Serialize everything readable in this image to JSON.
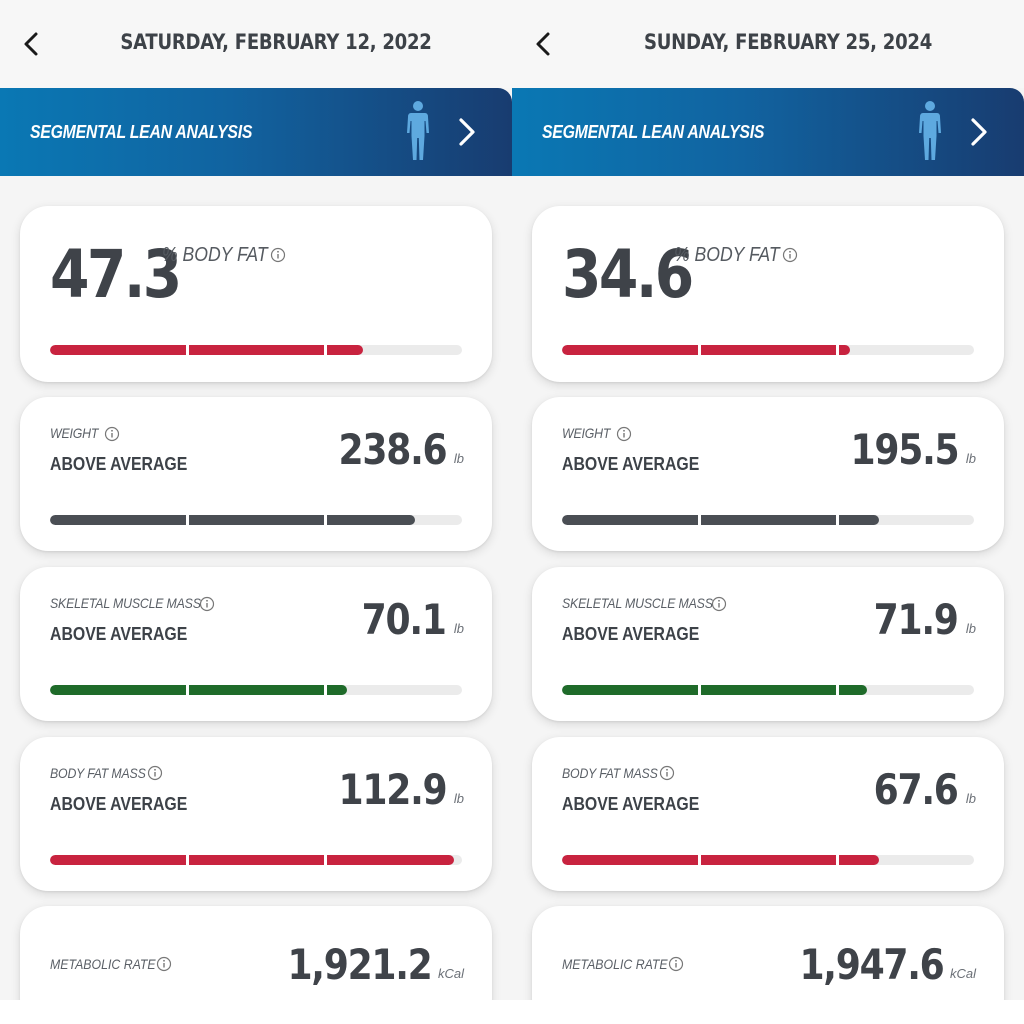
{
  "colors": {
    "red": "#c8233f",
    "dark": "#4a4e54",
    "green": "#1f6b2a",
    "track": "#ebebeb"
  },
  "panels": [
    {
      "date": "SATURDAY, FEBRUARY 12, 2022",
      "banner_label": "SEGMENTAL LEAN ANALYSIS",
      "body_fat": {
        "value": "47.3",
        "unit": "% BODY FAT",
        "level": 0.76,
        "color": "red"
      },
      "metrics": [
        {
          "label": "WEIGHT",
          "status": "ABOVE AVERAGE",
          "value": "238.6",
          "unit": "lb",
          "level": 0.885,
          "color": "dark"
        },
        {
          "label": "SKELETAL MUSCLE MASS",
          "status": "ABOVE AVERAGE",
          "value": "70.1",
          "unit": "lb",
          "level": 0.72,
          "color": "green"
        },
        {
          "label": "BODY FAT MASS",
          "status": "ABOVE AVERAGE",
          "value": "112.9",
          "unit": "lb",
          "level": 0.98,
          "color": "red"
        }
      ],
      "metabolic": {
        "label": "METABOLIC RATE",
        "value": "1,921.2",
        "unit": "kCal"
      }
    },
    {
      "date": "SUNDAY, FEBRUARY 25, 2024",
      "banner_label": "SEGMENTAL LEAN ANALYSIS",
      "body_fat": {
        "value": "34.6",
        "unit": "% BODY FAT",
        "level": 0.7,
        "color": "red"
      },
      "metrics": [
        {
          "label": "WEIGHT",
          "status": "ABOVE AVERAGE",
          "value": "195.5",
          "unit": "lb",
          "level": 0.77,
          "color": "dark"
        },
        {
          "label": "SKELETAL MUSCLE MASS",
          "status": "ABOVE AVERAGE",
          "value": "71.9",
          "unit": "lb",
          "level": 0.74,
          "color": "green"
        },
        {
          "label": "BODY FAT MASS",
          "status": "ABOVE AVERAGE",
          "value": "67.6",
          "unit": "lb",
          "level": 0.77,
          "color": "red"
        }
      ],
      "metabolic": {
        "label": "METABOLIC RATE",
        "value": "1,947.6",
        "unit": "kCal"
      }
    }
  ]
}
